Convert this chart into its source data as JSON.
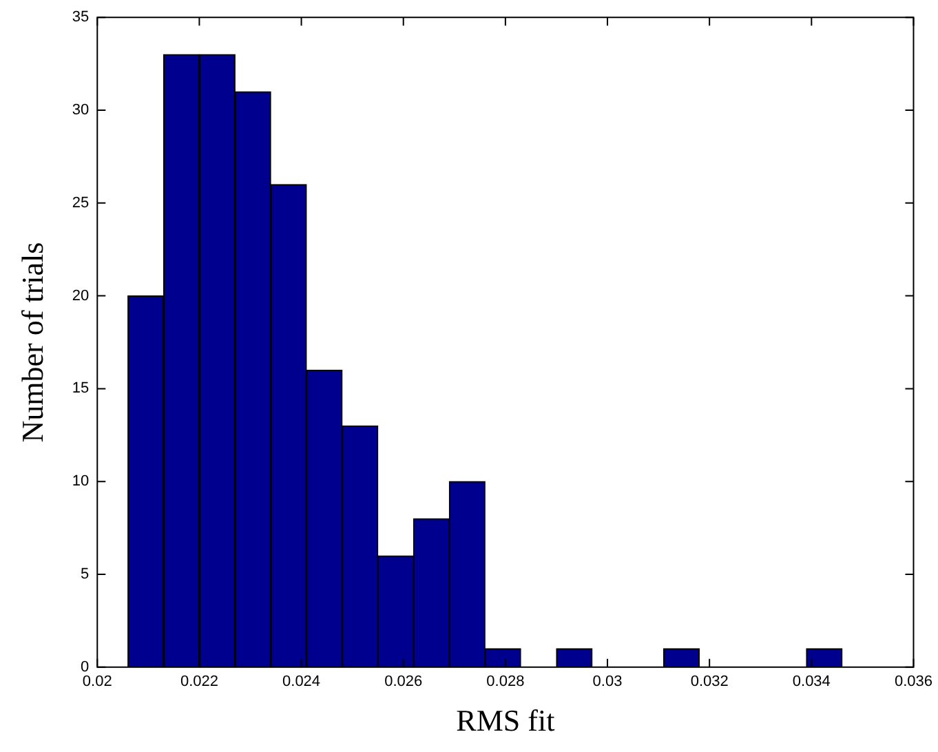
{
  "chart_data": {
    "type": "histogram",
    "xlabel": "RMS fit",
    "ylabel": "Number of trials",
    "bins": [
      0.0206,
      0.0213,
      0.022,
      0.0227,
      0.0234,
      0.0241,
      0.0248,
      0.0255,
      0.0262,
      0.0269,
      0.0276,
      0.0283,
      0.029,
      0.0297,
      0.0304,
      0.0311,
      0.0318,
      0.0325,
      0.0332,
      0.0339,
      0.0346
    ],
    "values": [
      20,
      33,
      33,
      31,
      26,
      16,
      13,
      6,
      8,
      10,
      1,
      0,
      1,
      0,
      0,
      1,
      0,
      0,
      0,
      1
    ],
    "color": "#00008f",
    "xlim": [
      0.02,
      0.036
    ],
    "xticks": [
      0.02,
      0.022,
      0.024,
      0.026,
      0.028,
      0.03,
      0.032,
      0.034,
      0.036
    ],
    "ylim": [
      0,
      35
    ],
    "yticks": [
      0,
      5,
      10,
      15,
      20,
      25,
      30,
      35
    ],
    "grid": false,
    "legend": false
  }
}
